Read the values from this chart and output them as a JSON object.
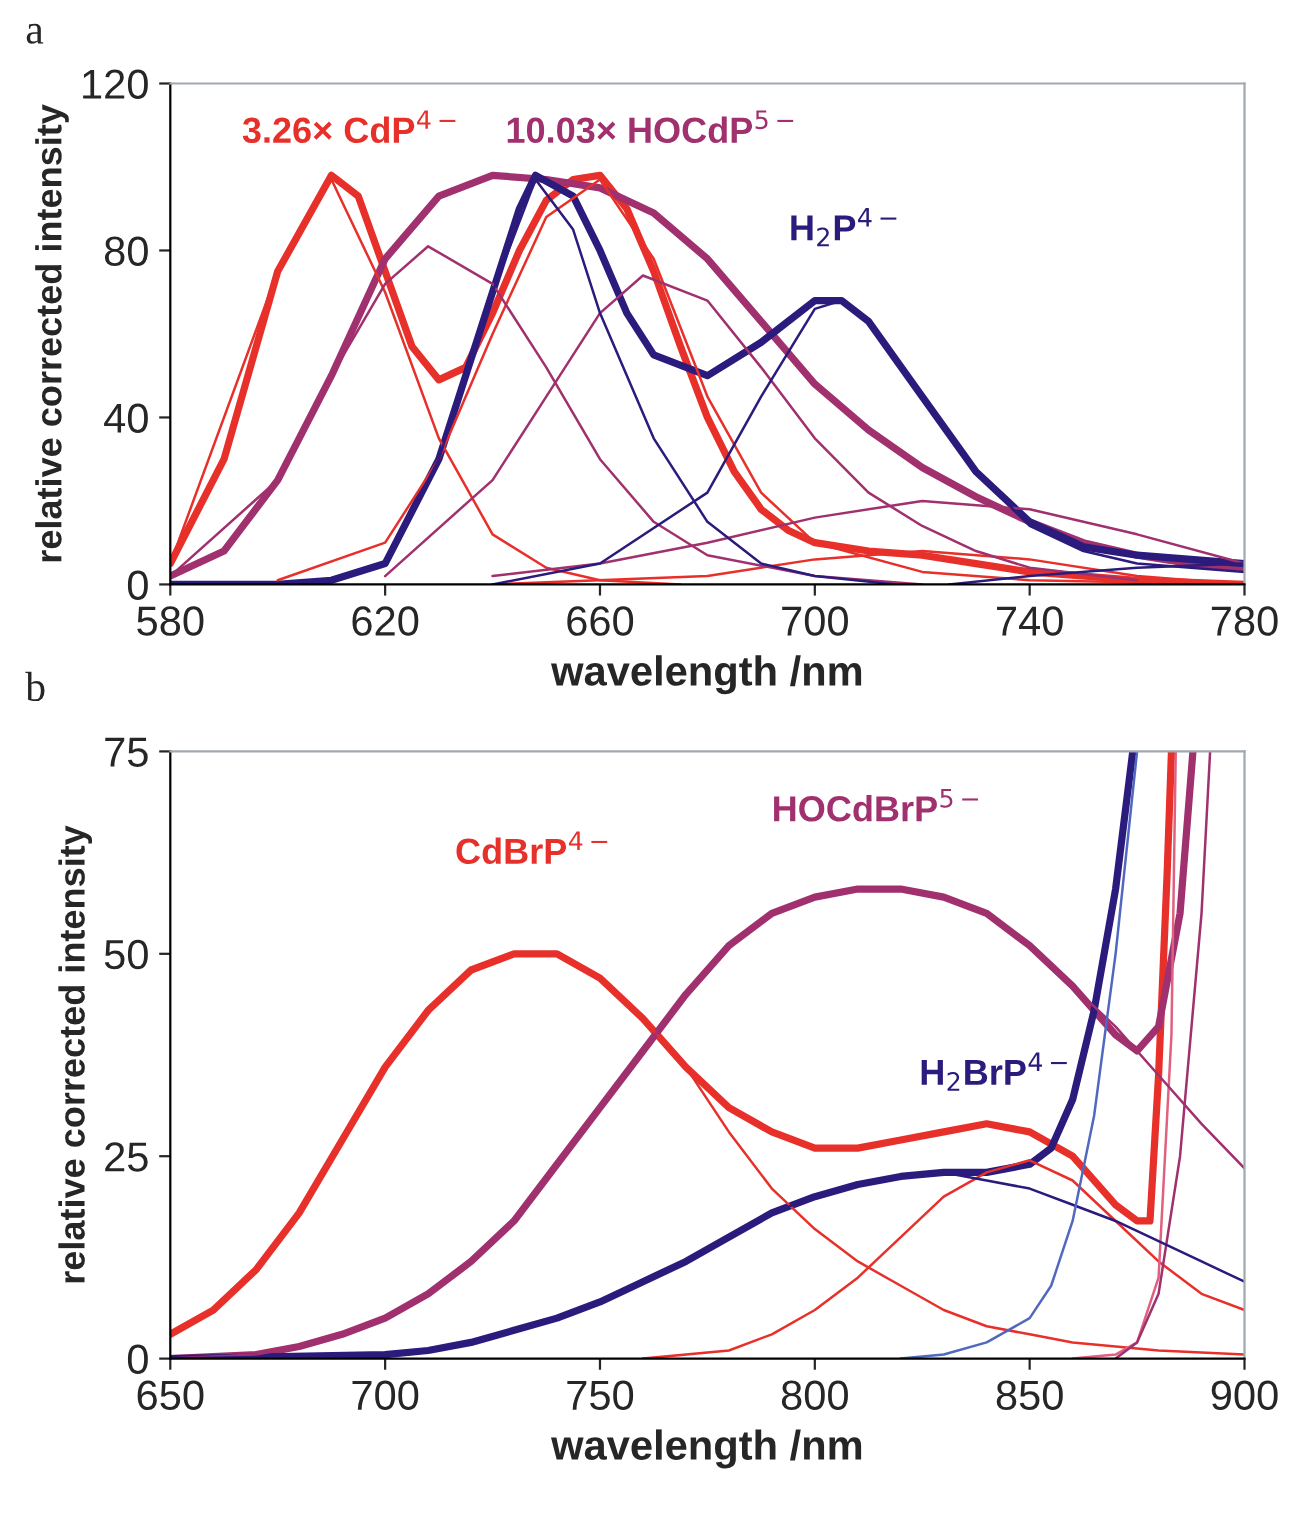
{
  "chart_data": [
    {
      "type": "line",
      "title": "a",
      "xlabel": "wavelength /nm",
      "ylabel": "relative corrected intensity",
      "xlim": [
        580,
        780
      ],
      "xticks": [
        580,
        620,
        660,
        700,
        740,
        780
      ],
      "ylim": [
        0,
        120
      ],
      "yticks": [
        0,
        40,
        80,
        120
      ],
      "grid": false,
      "legend": false,
      "marker": "none",
      "line_style": "solid",
      "series": [
        {
          "name": "3.26× CdP$^{4−}$",
          "color": "#e8302b",
          "x": [
            580,
            590,
            600,
            610,
            615,
            620,
            625,
            630,
            635,
            640,
            645,
            650,
            655,
            660,
            665,
            670,
            675,
            680,
            685,
            690,
            695,
            700,
            710,
            720,
            730,
            740,
            760,
            780
          ],
          "values": [
            5,
            30,
            75,
            98,
            93,
            75,
            57,
            49,
            52,
            65,
            80,
            92,
            97,
            98,
            90,
            75,
            57,
            40,
            27,
            18,
            13,
            10,
            8,
            7,
            5,
            3,
            1,
            0
          ]
        },
        {
          "name": "10.03× HOCdP$^{5−}$",
          "color": "#a0306e",
          "x": [
            580,
            590,
            600,
            610,
            620,
            630,
            640,
            650,
            660,
            670,
            680,
            690,
            700,
            710,
            720,
            730,
            740,
            750,
            760,
            770,
            780
          ],
          "values": [
            2,
            8,
            25,
            50,
            78,
            93,
            98,
            97,
            95,
            89,
            78,
            63,
            48,
            37,
            28,
            21,
            15,
            10,
            7,
            5,
            4
          ]
        },
        {
          "name": "H$_{2}$P$^{4−}$",
          "color": "#2b1b7c",
          "x": [
            580,
            600,
            610,
            620,
            630,
            640,
            645,
            648,
            655,
            660,
            665,
            670,
            680,
            690,
            700,
            705,
            710,
            720,
            730,
            740,
            750,
            760,
            780
          ],
          "values": [
            0,
            0,
            1,
            5,
            30,
            70,
            90,
            98,
            93,
            80,
            65,
            55,
            50,
            58,
            68,
            68,
            63,
            45,
            27,
            15,
            9,
            7,
            5
          ]
        },
        {
          "color": "#e8302b",
          "x": [
            580,
            600,
            610,
            620,
            630,
            640,
            650,
            660,
            675
          ],
          "values": [
            5,
            75,
            97,
            70,
            35,
            12,
            4,
            1,
            0
          ]
        },
        {
          "color": "#e8302b",
          "x": [
            600,
            620,
            630,
            640,
            650,
            660,
            670,
            680,
            690,
            700,
            720,
            740,
            780
          ],
          "values": [
            1,
            10,
            30,
            60,
            88,
            97,
            78,
            45,
            22,
            10,
            3,
            1,
            0
          ]
        },
        {
          "color": "#e8302b",
          "x": [
            640,
            680,
            700,
            720,
            740,
            760,
            780
          ],
          "values": [
            0,
            2,
            6,
            8,
            6,
            2,
            0
          ]
        },
        {
          "color": "#a0306e",
          "x": [
            580,
            600,
            610,
            620,
            628,
            640,
            650,
            660,
            670,
            680,
            700,
            720
          ],
          "values": [
            2,
            25,
            50,
            72,
            81,
            72,
            52,
            30,
            15,
            7,
            2,
            0
          ]
        },
        {
          "color": "#a0306e",
          "x": [
            620,
            640,
            650,
            660,
            668,
            680,
            690,
            700,
            710,
            720,
            730,
            740,
            760
          ],
          "values": [
            2,
            25,
            45,
            65,
            74,
            68,
            52,
            35,
            22,
            14,
            8,
            4,
            1
          ]
        },
        {
          "color": "#a0306e",
          "x": [
            640,
            660,
            680,
            700,
            720,
            740,
            760,
            780
          ],
          "values": [
            2,
            5,
            10,
            16,
            20,
            18,
            12,
            5
          ]
        },
        {
          "color": "#2b1b7c",
          "x": [
            620,
            630,
            640,
            648,
            655,
            660,
            670,
            680,
            690,
            700,
            715
          ],
          "values": [
            5,
            30,
            70,
            97,
            85,
            65,
            35,
            15,
            5,
            2,
            0
          ]
        },
        {
          "color": "#2b1b7c",
          "x": [
            640,
            660,
            680,
            690,
            700,
            705,
            710,
            720,
            730,
            740,
            750,
            760,
            780
          ],
          "values": [
            0,
            5,
            22,
            45,
            66,
            68,
            63,
            45,
            27,
            14,
            8,
            5,
            3
          ]
        },
        {
          "color": "#2b1b7c",
          "x": [
            725,
            740,
            760,
            780
          ],
          "values": [
            0,
            2,
            4,
            5
          ]
        }
      ]
    },
    {
      "type": "line",
      "title": "b",
      "xlabel": "wavelength /nm",
      "ylabel": "relative corrected intensity",
      "xlim": [
        650,
        900
      ],
      "xticks": [
        650,
        700,
        750,
        800,
        850,
        900
      ],
      "ylim": [
        0,
        75
      ],
      "yticks": [
        0,
        25,
        50,
        75
      ],
      "grid": false,
      "legend": false,
      "marker": "none",
      "line_style": "solid",
      "series": [
        {
          "name": "CdBrP$^{4−}$",
          "color": "#e8302b",
          "x": [
            650,
            660,
            670,
            680,
            690,
            700,
            710,
            720,
            730,
            740,
            750,
            760,
            770,
            780,
            790,
            800,
            810,
            820,
            830,
            840,
            850,
            860,
            870,
            875,
            878,
            880,
            882,
            883
          ],
          "values": [
            3,
            6,
            11,
            18,
            27,
            36,
            43,
            48,
            50,
            50,
            47,
            42,
            36,
            31,
            28,
            26,
            26,
            27,
            28,
            29,
            28,
            25,
            19,
            17,
            17,
            35,
            60,
            75
          ]
        },
        {
          "name": "HOCdBrP$^{5−}$",
          "color": "#a0306e",
          "x": [
            650,
            670,
            680,
            690,
            700,
            710,
            720,
            730,
            740,
            750,
            760,
            770,
            780,
            790,
            800,
            810,
            820,
            830,
            840,
            850,
            860,
            870,
            875,
            880,
            885,
            888
          ],
          "values": [
            0,
            0.5,
            1.5,
            3,
            5,
            8,
            12,
            17,
            24,
            31,
            38,
            45,
            51,
            55,
            57,
            58,
            58,
            57,
            55,
            51,
            46,
            40,
            38,
            41,
            55,
            75
          ]
        },
        {
          "name": "H$_{2}$BrP$^{4−}$",
          "color": "#2b1b7c",
          "x": [
            650,
            700,
            710,
            720,
            730,
            740,
            750,
            760,
            770,
            780,
            790,
            800,
            810,
            820,
            830,
            840,
            850,
            855,
            860,
            865,
            870,
            874
          ],
          "values": [
            0,
            0.5,
            1,
            2,
            3.5,
            5,
            7,
            9.5,
            12,
            15,
            18,
            20,
            21.5,
            22.5,
            23,
            23,
            24,
            26,
            32,
            43,
            58,
            75
          ]
        },
        {
          "color": "#e8302b",
          "x": [
            650,
            660,
            670,
            680,
            690,
            700,
            710,
            720,
            730,
            740,
            750,
            760,
            770,
            780,
            790,
            800,
            810,
            820,
            830,
            840,
            850,
            860,
            870,
            880,
            900
          ],
          "values": [
            3,
            6,
            11,
            18,
            27,
            36,
            43,
            48,
            50,
            50,
            47,
            42,
            36,
            28,
            21,
            16,
            12,
            9,
            6,
            4,
            3,
            2,
            1.5,
            1,
            0.5
          ]
        },
        {
          "color": "#e8302b",
          "x": [
            760,
            780,
            790,
            800,
            810,
            820,
            830,
            840,
            850,
            860,
            870,
            880,
            890,
            900
          ],
          "values": [
            0,
            1,
            3,
            6,
            10,
            15,
            20,
            23,
            24.5,
            22,
            17,
            12,
            8,
            6
          ]
        },
        {
          "color": "#e06080",
          "x": [
            860,
            870,
            875,
            880,
            883,
            884
          ],
          "values": [
            0,
            0.5,
            2,
            10,
            40,
            75
          ]
        },
        {
          "color": "#a0306e",
          "x": [
            650,
            670,
            680,
            690,
            700,
            710,
            720,
            730,
            740,
            750,
            760,
            770,
            780,
            790,
            800,
            810,
            820,
            830,
            840,
            850,
            860,
            870,
            880,
            890,
            900
          ],
          "values": [
            0,
            0.5,
            1.5,
            3,
            5,
            8,
            12,
            17,
            24,
            31,
            38,
            45,
            51,
            55,
            57,
            58,
            58,
            57,
            55,
            51,
            46,
            41,
            35,
            29,
            23.5
          ]
        },
        {
          "color": "#a0306e",
          "x": [
            870,
            875,
            880,
            885,
            890,
            892
          ],
          "values": [
            0,
            2,
            8,
            25,
            55,
            75
          ]
        },
        {
          "color": "#2b1b7c",
          "x": [
            650,
            700,
            710,
            720,
            730,
            740,
            750,
            760,
            770,
            780,
            790,
            800,
            810,
            820,
            830,
            840,
            850,
            860,
            870,
            880,
            890,
            900
          ],
          "values": [
            0,
            0.5,
            1,
            2,
            3.5,
            5,
            7,
            9.5,
            12,
            15,
            18,
            20,
            21.5,
            22.5,
            23,
            22,
            21,
            19,
            17,
            14.5,
            12,
            9.5
          ]
        },
        {
          "color": "#5068c0",
          "x": [
            820,
            830,
            840,
            850,
            855,
            860,
            865,
            870,
            875
          ],
          "values": [
            0,
            0.5,
            2,
            5,
            9,
            17,
            30,
            50,
            75
          ]
        }
      ]
    }
  ]
}
